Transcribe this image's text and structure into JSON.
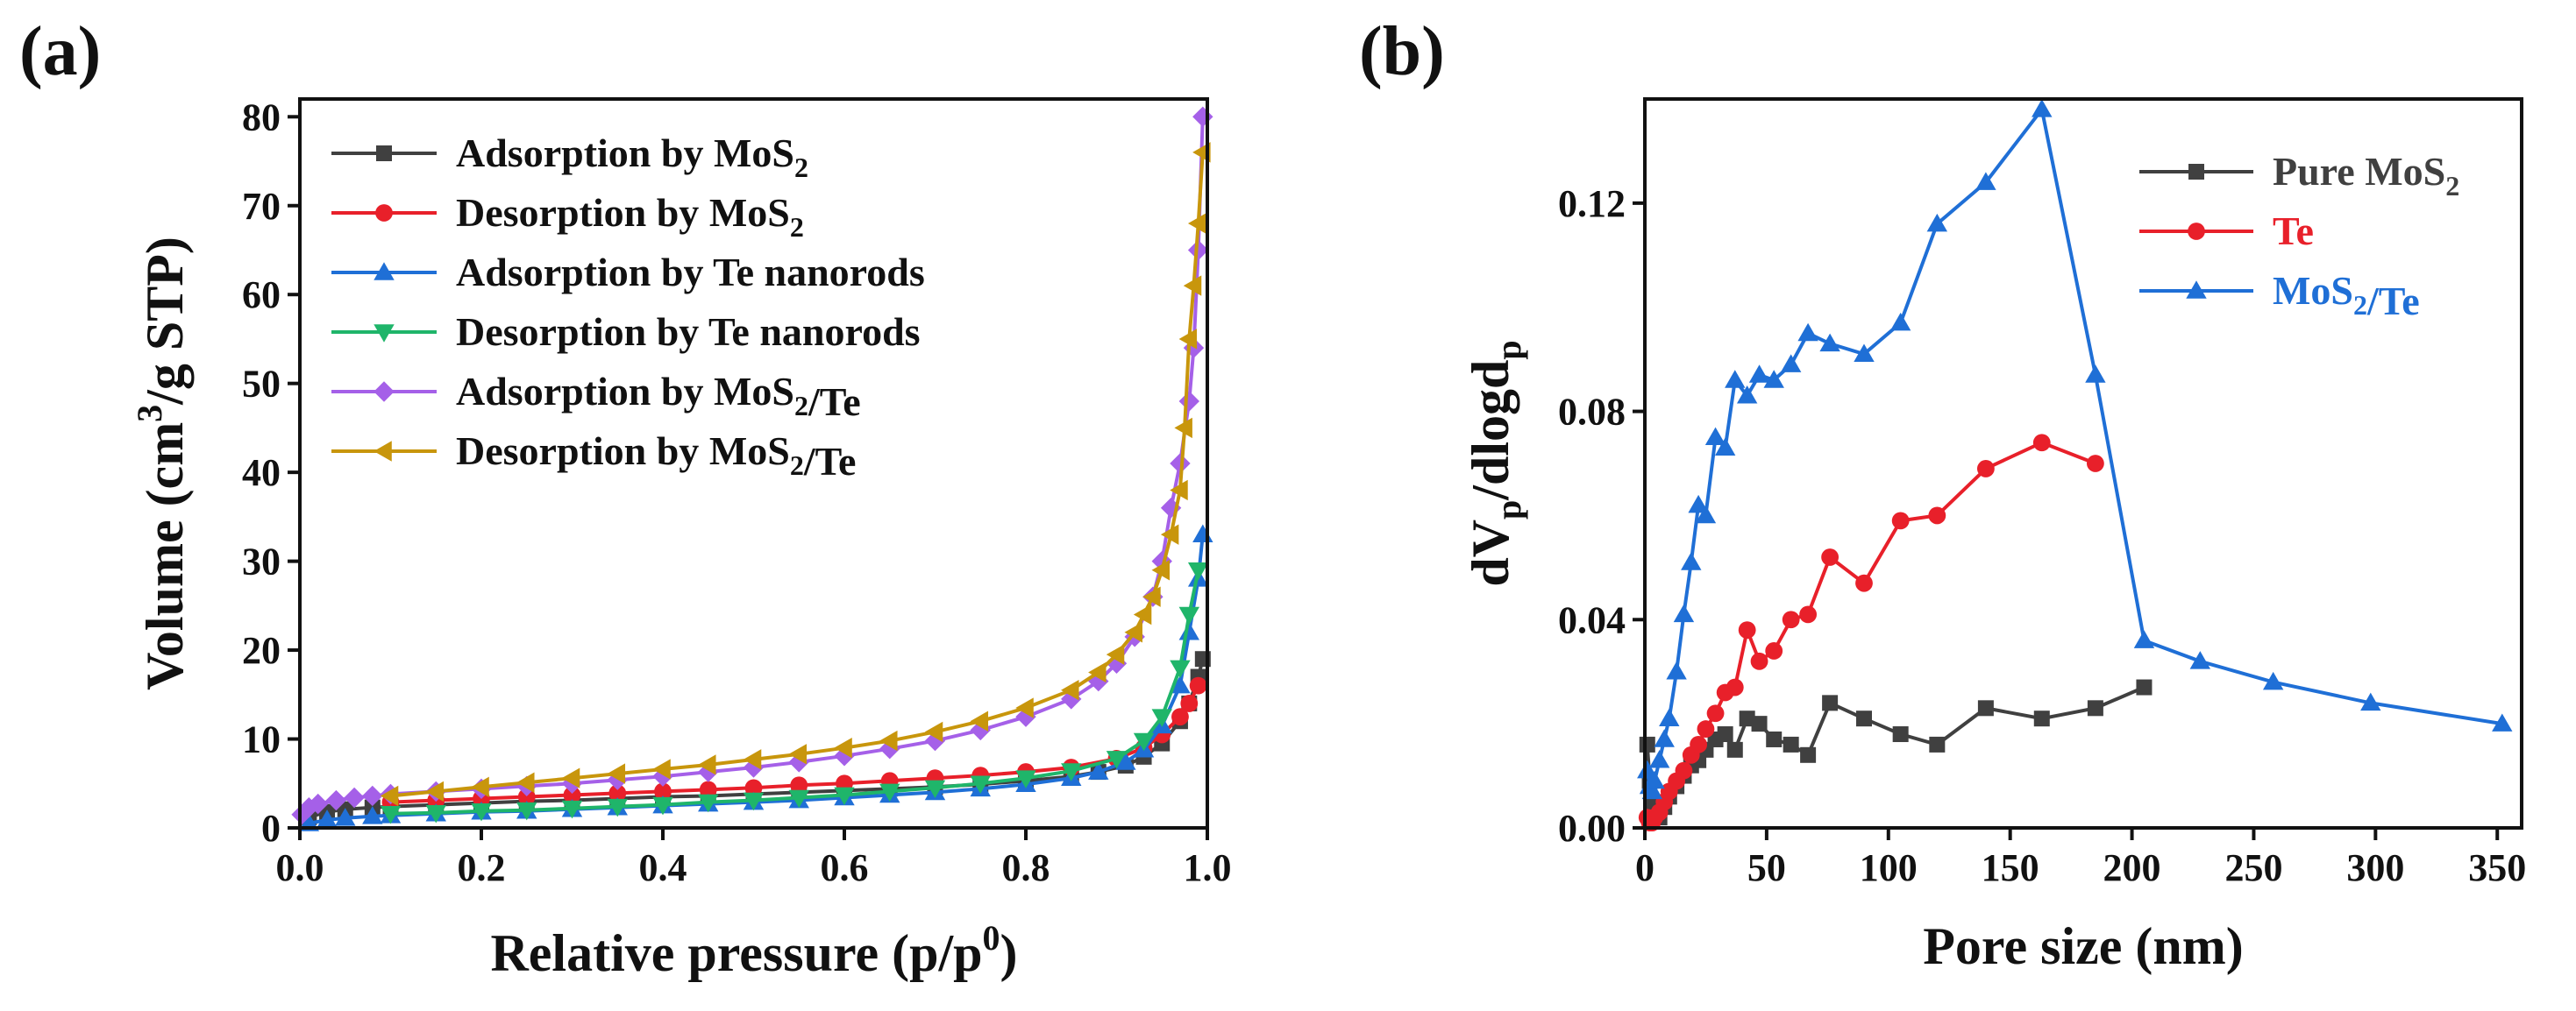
{
  "figure": {
    "panel_a_label": "(a)",
    "panel_b_label": "(b)"
  },
  "chart_data": [
    {
      "type": "line",
      "panel": "a",
      "xlabel": "Relative pressure (p/p0)",
      "ylabel": "Volume (cm3/g STP)",
      "xlim": [
        0.0,
        1.0
      ],
      "ylim": [
        0,
        82
      ],
      "xticks": [
        "0.0",
        "0.2",
        "0.4",
        "0.6",
        "0.8",
        "1.0"
      ],
      "yticks": [
        "0",
        "10",
        "20",
        "30",
        "40",
        "50",
        "60",
        "70",
        "80"
      ],
      "legend_position": "top-left",
      "series": [
        {
          "name": "Adsorption by MoS2",
          "color": "#404040",
          "marker": "square",
          "x": [
            0.01,
            0.03,
            0.05,
            0.08,
            0.1,
            0.15,
            0.2,
            0.25,
            0.3,
            0.35,
            0.4,
            0.45,
            0.5,
            0.55,
            0.6,
            0.65,
            0.7,
            0.75,
            0.8,
            0.85,
            0.88,
            0.91,
            0.93,
            0.95,
            0.97,
            0.98,
            0.99,
            0.995
          ],
          "y": [
            1.2,
            1.8,
            2.1,
            2.3,
            2.4,
            2.6,
            2.8,
            3.0,
            3.1,
            3.3,
            3.5,
            3.6,
            3.8,
            4.0,
            4.2,
            4.4,
            4.6,
            4.9,
            5.3,
            5.8,
            6.3,
            7.0,
            8.0,
            9.5,
            12.0,
            14.0,
            17.0,
            19.0
          ]
        },
        {
          "name": "Desorption by MoS2",
          "color": "#e8202a",
          "marker": "circle",
          "x": [
            0.99,
            0.98,
            0.97,
            0.95,
            0.93,
            0.9,
            0.85,
            0.8,
            0.75,
            0.7,
            0.65,
            0.6,
            0.55,
            0.5,
            0.45,
            0.4,
            0.35,
            0.3,
            0.25,
            0.2,
            0.15,
            0.1
          ],
          "y": [
            16.0,
            14.0,
            12.5,
            10.5,
            9.0,
            7.8,
            6.8,
            6.3,
            5.9,
            5.6,
            5.3,
            5.0,
            4.8,
            4.5,
            4.3,
            4.1,
            3.9,
            3.7,
            3.5,
            3.3,
            3.1,
            2.9
          ]
        },
        {
          "name": "Adsorption by Te nanorods",
          "color": "#1f6fd6",
          "marker": "triangle-up",
          "x": [
            0.01,
            0.03,
            0.05,
            0.08,
            0.1,
            0.15,
            0.2,
            0.25,
            0.3,
            0.35,
            0.4,
            0.45,
            0.5,
            0.55,
            0.6,
            0.65,
            0.7,
            0.75,
            0.8,
            0.85,
            0.88,
            0.91,
            0.93,
            0.95,
            0.97,
            0.98,
            0.99,
            0.995
          ],
          "y": [
            0.5,
            0.9,
            1.1,
            1.3,
            1.4,
            1.6,
            1.8,
            1.9,
            2.1,
            2.3,
            2.5,
            2.7,
            2.9,
            3.1,
            3.4,
            3.7,
            4.0,
            4.4,
            4.9,
            5.6,
            6.3,
            7.4,
            8.8,
            11.5,
            16.0,
            22.0,
            28.0,
            33.0
          ]
        },
        {
          "name": "Desorption by Te nanorods",
          "color": "#1fb56a",
          "marker": "triangle-down",
          "x": [
            0.99,
            0.98,
            0.97,
            0.95,
            0.93,
            0.9,
            0.85,
            0.8,
            0.75,
            0.7,
            0.65,
            0.6,
            0.55,
            0.5,
            0.45,
            0.4,
            0.35,
            0.3,
            0.25,
            0.2,
            0.15,
            0.1
          ],
          "y": [
            29.0,
            24.0,
            18.0,
            12.5,
            9.8,
            7.8,
            6.4,
            5.6,
            5.0,
            4.5,
            4.1,
            3.7,
            3.4,
            3.1,
            2.9,
            2.6,
            2.4,
            2.2,
            2.0,
            1.9,
            1.7,
            1.6
          ]
        },
        {
          "name": "Adsorption by MoS2/Te",
          "color": "#a560e8",
          "marker": "diamond",
          "x": [
            0.002,
            0.01,
            0.02,
            0.04,
            0.06,
            0.08,
            0.1,
            0.15,
            0.2,
            0.25,
            0.3,
            0.35,
            0.4,
            0.45,
            0.5,
            0.55,
            0.6,
            0.65,
            0.7,
            0.75,
            0.8,
            0.85,
            0.88,
            0.9,
            0.92,
            0.94,
            0.95,
            0.96,
            0.97,
            0.98,
            0.985,
            0.99,
            0.995
          ],
          "y": [
            1.5,
            2.3,
            2.7,
            3.1,
            3.4,
            3.6,
            3.8,
            4.1,
            4.4,
            4.7,
            5.0,
            5.4,
            5.8,
            6.3,
            6.8,
            7.4,
            8.1,
            8.9,
            9.8,
            11.0,
            12.5,
            14.5,
            16.5,
            18.5,
            21.5,
            26.0,
            30.0,
            36.0,
            41.0,
            48.0,
            54.0,
            65.0,
            80.0
          ]
        },
        {
          "name": "Desorption by MoS2/Te",
          "color": "#c8960c",
          "marker": "triangle-left",
          "x": [
            0.995,
            0.99,
            0.985,
            0.98,
            0.975,
            0.97,
            0.96,
            0.95,
            0.94,
            0.93,
            0.92,
            0.9,
            0.88,
            0.85,
            0.8,
            0.75,
            0.7,
            0.65,
            0.6,
            0.55,
            0.5,
            0.45,
            0.4,
            0.35,
            0.3,
            0.25,
            0.2,
            0.15,
            0.1
          ],
          "y": [
            76.0,
            68.0,
            61.0,
            55.0,
            45.0,
            38.0,
            33.0,
            29.0,
            26.0,
            24.0,
            22.0,
            19.5,
            17.5,
            15.5,
            13.5,
            12.0,
            10.8,
            9.8,
            9.0,
            8.3,
            7.7,
            7.1,
            6.6,
            6.1,
            5.6,
            5.1,
            4.6,
            4.1,
            3.6
          ]
        }
      ]
    },
    {
      "type": "line",
      "panel": "b",
      "xlabel": "Pore size (nm)",
      "ylabel": "dVp/dlogdp",
      "xlim": [
        0,
        360
      ],
      "ylim": [
        0,
        0.14
      ],
      "xticks": [
        "0",
        "50",
        "100",
        "150",
        "200",
        "250",
        "300",
        "350"
      ],
      "yticks": [
        "0.00",
        "0.04",
        "0.08",
        "0.12"
      ],
      "ytick_values": [
        0,
        0.04,
        0.08,
        0.12
      ],
      "legend_position": "top-right",
      "series": [
        {
          "name": "Pure MoS2",
          "color": "#404040",
          "marker": "square",
          "x": [
            1,
            2,
            3,
            4,
            6,
            8,
            10,
            13,
            16,
            19,
            22,
            25,
            29,
            33,
            37,
            42,
            47,
            53,
            60,
            67,
            76,
            90,
            105,
            120,
            140,
            163,
            185,
            205
          ],
          "y": [
            0.016,
            0.009,
            0.005,
            0.003,
            0.002,
            0.004,
            0.006,
            0.008,
            0.01,
            0.012,
            0.013,
            0.015,
            0.017,
            0.018,
            0.015,
            0.021,
            0.02,
            0.017,
            0.016,
            0.014,
            0.024,
            0.021,
            0.018,
            0.016,
            0.023,
            0.021,
            0.023,
            0.027
          ]
        },
        {
          "name": "Te",
          "color": "#e8202a",
          "marker": "circle",
          "x": [
            1,
            2,
            3,
            4,
            6,
            8,
            10,
            13,
            16,
            19,
            22,
            25,
            29,
            33,
            37,
            42,
            47,
            53,
            60,
            67,
            76,
            90,
            105,
            120,
            140,
            163,
            185
          ],
          "y": [
            0.002,
            0.001,
            0.001,
            0.002,
            0.003,
            0.005,
            0.007,
            0.009,
            0.011,
            0.014,
            0.016,
            0.019,
            0.022,
            0.026,
            0.027,
            0.038,
            0.032,
            0.034,
            0.04,
            0.041,
            0.052,
            0.047,
            0.059,
            0.06,
            0.069,
            0.074,
            0.07
          ]
        },
        {
          "name": "MoS2/Te",
          "color": "#1f6fd6",
          "marker": "triangle-up",
          "x": [
            1,
            2,
            3,
            4,
            6,
            8,
            10,
            13,
            16,
            19,
            22,
            25,
            29,
            33,
            37,
            42,
            47,
            53,
            60,
            67,
            76,
            90,
            105,
            120,
            140,
            163,
            185,
            205,
            228,
            258,
            298,
            352
          ],
          "y": [
            0.011,
            0.008,
            0.007,
            0.009,
            0.013,
            0.017,
            0.021,
            0.03,
            0.041,
            0.051,
            0.062,
            0.06,
            0.075,
            0.073,
            0.086,
            0.083,
            0.087,
            0.086,
            0.089,
            0.095,
            0.093,
            0.091,
            0.097,
            0.116,
            0.124,
            0.138,
            0.087,
            0.036,
            0.032,
            0.028,
            0.024,
            0.02
          ]
        }
      ]
    }
  ]
}
